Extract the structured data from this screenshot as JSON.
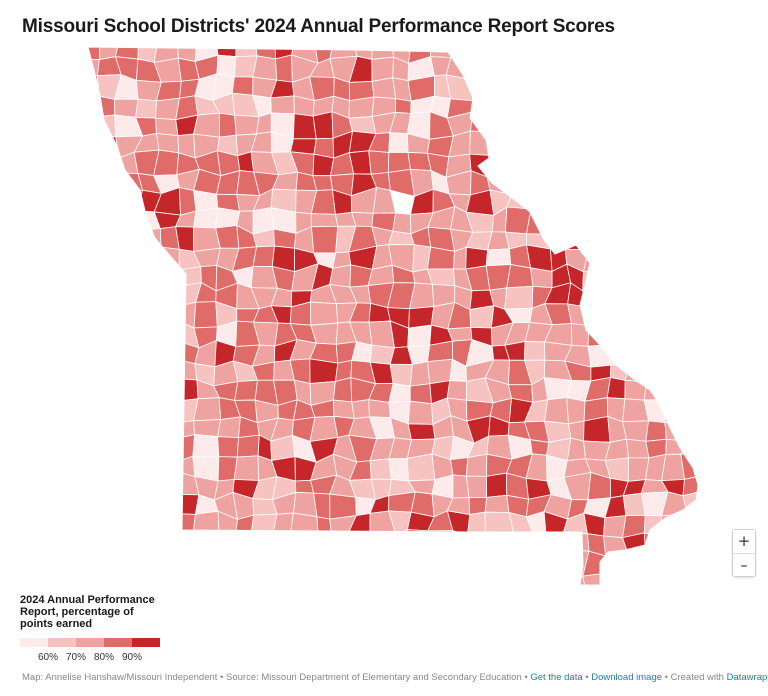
{
  "title": "Missouri School Districts' 2024 Annual Performance Report Scores",
  "map": {
    "region": "Missouri",
    "unit": "school districts",
    "colors": {
      "below_60": "#fcebea",
      "60_70": "#f6c3c1",
      "70_80": "#eea3a1",
      "80_90": "#e06c69",
      "above_90": "#c52629",
      "no_data": "#ffffff",
      "boundary": "#ffffff"
    }
  },
  "legend": {
    "title": "2024 Annual Performance Report, percentage of points earned",
    "ticks": [
      "60%",
      "70%",
      "80%",
      "90%"
    ],
    "colors": [
      "#fcebea",
      "#f6c3c1",
      "#eea3a1",
      "#e06c69",
      "#c52629"
    ]
  },
  "zoom": {
    "in_label": "+",
    "out_label": "–"
  },
  "footer": {
    "map_credit": "Map: Annelise Hanshaw/Missouri Independent",
    "source": "Source: Missouri Department of Elementary and Secondary Education",
    "get_data": "Get the data",
    "download": "Download image",
    "created_with_prefix": "Created with",
    "created_with": "Datawrapper",
    "sep": " • "
  }
}
